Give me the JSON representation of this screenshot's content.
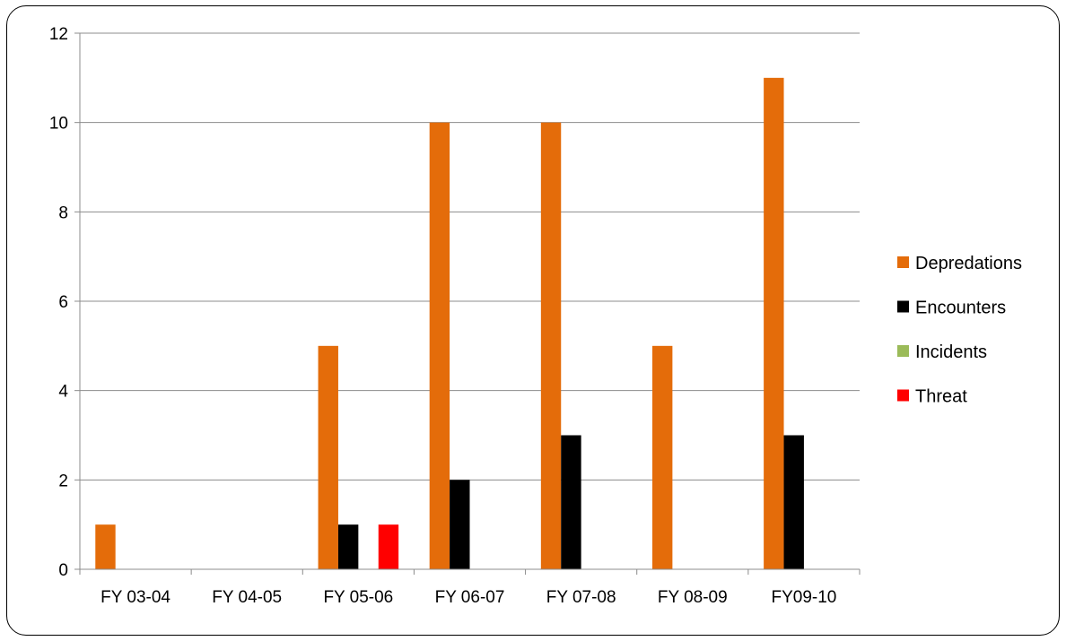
{
  "chart_data": {
    "type": "bar",
    "categories": [
      "FY 03-04",
      "FY 04-05",
      "FY 05-06",
      "FY 06-07",
      "FY 07-08",
      "FY 08-09",
      "FY09-10"
    ],
    "series": [
      {
        "name": "Depredations",
        "color": "#E46C0A",
        "values": [
          1,
          0,
          5,
          10,
          10,
          5,
          11
        ]
      },
      {
        "name": "Encounters",
        "color": "#000000",
        "values": [
          0,
          0,
          1,
          2,
          3,
          0,
          3
        ]
      },
      {
        "name": "Incidents",
        "color": "#9BBB59",
        "values": [
          0,
          0,
          0,
          0,
          0,
          0,
          0
        ]
      },
      {
        "name": "Threat",
        "color": "#FF0000",
        "values": [
          0,
          0,
          1,
          0,
          0,
          0,
          0
        ]
      }
    ],
    "yticks": [
      0,
      2,
      4,
      6,
      8,
      10,
      12
    ],
    "ylim": [
      0,
      12
    ],
    "title": "",
    "xlabel": "",
    "ylabel": "",
    "grid": true,
    "legend_position": "right"
  }
}
